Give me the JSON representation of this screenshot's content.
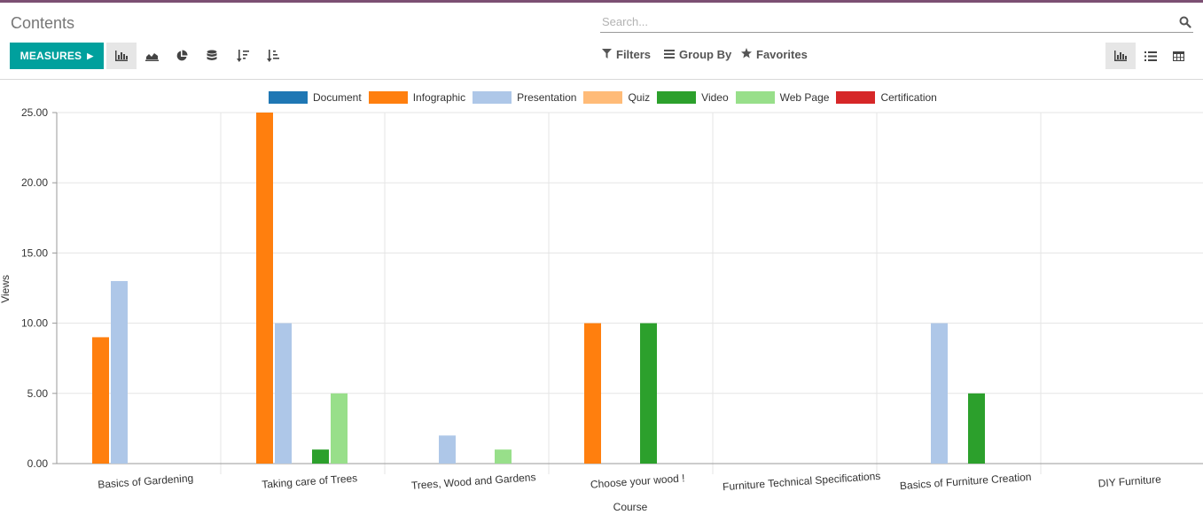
{
  "app": {
    "title": "Contents"
  },
  "search": {
    "placeholder": "Search..."
  },
  "toolbar": {
    "measures_label": "MEASURES",
    "view_icons": [
      "bar-chart-icon",
      "line-chart-icon",
      "pie-chart-icon",
      "stacked-icon",
      "sort-descending-icon",
      "sort-ascending-icon"
    ],
    "active_chart": "bar"
  },
  "filters": {
    "filters_label": "Filters",
    "groupby_label": "Group By",
    "favorites_label": "Favorites"
  },
  "view_switcher": {
    "icons": [
      "graph-view-icon",
      "list-view-icon",
      "pivot-view-icon"
    ],
    "active": "graph"
  },
  "chart_data": {
    "type": "bar",
    "xlabel": "Course",
    "ylabel": "Views",
    "ylim": [
      0,
      25
    ],
    "y_ticks": [
      "0.00",
      "5.00",
      "10.00",
      "15.00",
      "20.00",
      "25.00"
    ],
    "grid": true,
    "legend_position": "top-center",
    "categories": [
      "Basics of Gardening",
      "Taking care of Trees",
      "Trees, Wood and Gardens",
      "Choose your wood !",
      "Furniture Technical Specifications",
      "Basics of Furniture Creation",
      "DIY Furniture"
    ],
    "series": [
      {
        "name": "Document",
        "color": "#1f77b4",
        "values": [
          0,
          0,
          0,
          0,
          0,
          0,
          0
        ]
      },
      {
        "name": "Infographic",
        "color": "#ff7f0e",
        "values": [
          9,
          25,
          0,
          10,
          0,
          0,
          0
        ]
      },
      {
        "name": "Presentation",
        "color": "#aec7e8",
        "values": [
          13,
          10,
          2,
          0,
          0,
          10,
          0
        ]
      },
      {
        "name": "Quiz",
        "color": "#ffbb78",
        "values": [
          0,
          0,
          0,
          0,
          0,
          0,
          0
        ]
      },
      {
        "name": "Video",
        "color": "#2ca02c",
        "values": [
          0,
          1,
          0,
          10,
          0,
          5,
          0
        ]
      },
      {
        "name": "Web Page",
        "color": "#98df8a",
        "values": [
          0,
          5,
          1,
          0,
          0,
          0,
          0
        ]
      },
      {
        "name": "Certification",
        "color": "#d62728",
        "values": [
          0,
          0,
          0,
          0,
          0,
          0,
          0
        ]
      }
    ]
  }
}
